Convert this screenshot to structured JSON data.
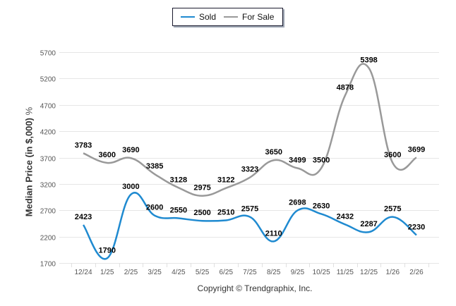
{
  "legend": {
    "items": [
      {
        "name": "Sold",
        "color": "#1f8ad0"
      },
      {
        "name": "For Sale",
        "color": "#999999"
      }
    ]
  },
  "footer": {
    "copyright": "Copyright © Trendgraphix, Inc."
  },
  "chart_data": {
    "type": "line",
    "title": "",
    "xlabel": "",
    "ylabel": "Median Price (in $,000)",
    "ylabel_suffix": "%",
    "ylim": [
      1700,
      5700
    ],
    "yticks": [
      1700,
      2200,
      2700,
      3200,
      3700,
      4200,
      4700,
      5200,
      5700
    ],
    "grid": true,
    "legend_position": "top-center",
    "categories": [
      "12/24",
      "1/25",
      "2/25",
      "3/25",
      "4/25",
      "5/25",
      "6/25",
      "7/25",
      "8/25",
      "9/25",
      "10/25",
      "11/25",
      "12/25",
      "1/26",
      "2/26"
    ],
    "series": [
      {
        "name": "Sold",
        "color": "#1f8ad0",
        "values": [
          2423,
          1790,
          3000,
          2600,
          2550,
          2500,
          2510,
          2575,
          2110,
          2698,
          2630,
          2432,
          2287,
          2575,
          2230
        ]
      },
      {
        "name": "For Sale",
        "color": "#999999",
        "values": [
          3783,
          3600,
          3690,
          3385,
          3128,
          2975,
          3122,
          3323,
          3650,
          3499,
          3500,
          4878,
          5398,
          3600,
          3699
        ]
      }
    ]
  }
}
